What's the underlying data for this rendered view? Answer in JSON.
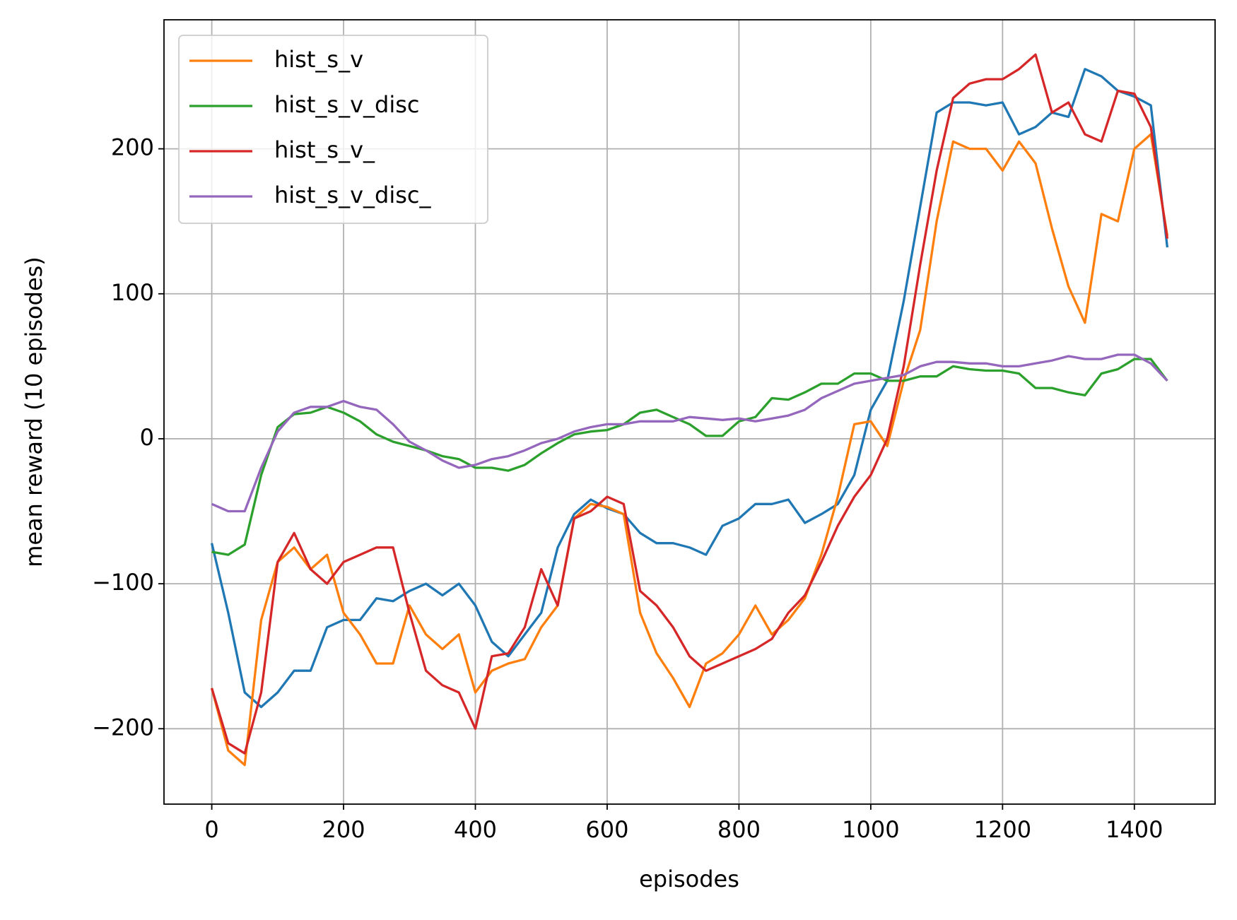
{
  "chart_data": {
    "type": "line",
    "x_label": "episodes",
    "y_label": "mean reward (10 episodes)",
    "x": [
      0,
      25,
      50,
      75,
      100,
      125,
      150,
      175,
      200,
      225,
      250,
      275,
      300,
      325,
      350,
      375,
      400,
      425,
      450,
      475,
      500,
      525,
      550,
      575,
      600,
      625,
      650,
      675,
      700,
      725,
      750,
      775,
      800,
      825,
      850,
      875,
      900,
      925,
      950,
      975,
      1000,
      1025,
      1050,
      1075,
      1100,
      1125,
      1150,
      1175,
      1200,
      1225,
      1250,
      1275,
      1300,
      1325,
      1350,
      1375,
      1400,
      1425,
      1450
    ],
    "series": [
      {
        "color": "#1f77b4",
        "values": [
          -72,
          -120,
          -175,
          -185,
          -175,
          -160,
          -160,
          -130,
          -125,
          -125,
          -110,
          -112,
          -105,
          -100,
          -108,
          -100,
          -115,
          -140,
          -150,
          -135,
          -120,
          -75,
          -52,
          -42,
          -48,
          -52,
          -65,
          -72,
          -72,
          -75,
          -80,
          -60,
          -55,
          -45,
          -45,
          -42,
          -58,
          -52,
          -45,
          -25,
          20,
          40,
          95,
          160,
          225,
          232,
          232,
          230,
          232,
          210,
          215,
          225,
          222,
          255,
          250,
          240,
          236,
          230,
          132
        ]
      },
      {
        "name": "hist_s_v",
        "color": "#ff7f0e",
        "values": [
          -172,
          -215,
          -225,
          -125,
          -85,
          -75,
          -90,
          -80,
          -120,
          -135,
          -155,
          -155,
          -115,
          -135,
          -145,
          -135,
          -175,
          -160,
          -155,
          -152,
          -130,
          -115,
          -55,
          -45,
          -47,
          -52,
          -120,
          -148,
          -165,
          -185,
          -155,
          -148,
          -135,
          -115,
          -135,
          -125,
          -110,
          -80,
          -40,
          10,
          12,
          -5,
          40,
          75,
          150,
          205,
          200,
          200,
          185,
          205,
          190,
          145,
          105,
          80,
          155,
          150,
          200,
          210,
          140
        ]
      },
      {
        "name": "hist_s_v_disc",
        "color": "#2ca02c",
        "values": [
          -78,
          -80,
          -73,
          -25,
          8,
          17,
          18,
          22,
          18,
          12,
          3,
          -2,
          -5,
          -8,
          -12,
          -14,
          -20,
          -20,
          -22,
          -18,
          -10,
          -3,
          3,
          5,
          6,
          10,
          18,
          20,
          15,
          10,
          2,
          2,
          12,
          15,
          28,
          27,
          32,
          38,
          38,
          45,
          45,
          40,
          40,
          43,
          43,
          50,
          48,
          47,
          47,
          45,
          35,
          35,
          32,
          30,
          45,
          48,
          55,
          55,
          40
        ]
      },
      {
        "name": "hist_s_v_",
        "color": "#d62728",
        "values": [
          -172,
          -210,
          -217,
          -175,
          -85,
          -65,
          -90,
          -100,
          -85,
          -80,
          -75,
          -75,
          -120,
          -160,
          -170,
          -175,
          -200,
          -150,
          -148,
          -130,
          -90,
          -115,
          -55,
          -50,
          -40,
          -45,
          -105,
          -115,
          -130,
          -150,
          -160,
          -155,
          -150,
          -145,
          -138,
          -120,
          -108,
          -85,
          -60,
          -40,
          -25,
          0,
          50,
          120,
          185,
          235,
          245,
          248,
          248,
          255,
          265,
          225,
          232,
          210,
          205,
          240,
          238,
          215,
          138
        ]
      },
      {
        "name": "hist_s_v_disc_",
        "color": "#9467bd",
        "values": [
          -45,
          -50,
          -50,
          -20,
          5,
          18,
          22,
          22,
          26,
          22,
          20,
          10,
          -2,
          -8,
          -15,
          -20,
          -18,
          -14,
          -12,
          -8,
          -3,
          0,
          5,
          8,
          10,
          10,
          12,
          12,
          12,
          15,
          14,
          13,
          14,
          12,
          14,
          16,
          20,
          28,
          33,
          38,
          40,
          42,
          44,
          50,
          53,
          53,
          52,
          52,
          50,
          50,
          52,
          54,
          57,
          55,
          55,
          58,
          58,
          52,
          40
        ]
      }
    ],
    "xlim": [
      -72.5,
      1522.5
    ],
    "ylim": [
      -252,
      289
    ],
    "xticks": [
      0,
      200,
      400,
      600,
      800,
      1000,
      1200,
      1400
    ],
    "yticks": [
      {
        "value": -200,
        "label": "−200"
      },
      {
        "value": -100,
        "label": "−100"
      },
      0,
      100,
      200
    ],
    "grid": true,
    "legend": "upper left"
  }
}
